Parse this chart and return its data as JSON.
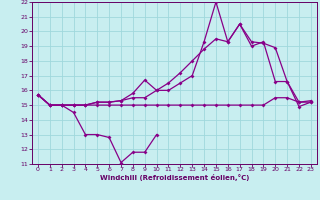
{
  "xlabel": "Windchill (Refroidissement éolien,°C)",
  "bg_color": "#c8eef0",
  "grid_color": "#a0d8dc",
  "line_color": "#880088",
  "xlim": [
    -0.5,
    23.5
  ],
  "ylim": [
    11,
    22
  ],
  "xticks": [
    0,
    1,
    2,
    3,
    4,
    5,
    6,
    7,
    8,
    9,
    10,
    11,
    12,
    13,
    14,
    15,
    16,
    17,
    18,
    19,
    20,
    21,
    22,
    23
  ],
  "yticks": [
    11,
    12,
    13,
    14,
    15,
    16,
    17,
    18,
    19,
    20,
    21,
    22
  ],
  "line1_x": [
    0,
    1,
    2,
    3,
    4,
    5,
    6,
    7,
    8,
    9,
    10
  ],
  "line1_y": [
    15.7,
    15.0,
    15.0,
    14.5,
    13.0,
    13.0,
    12.8,
    11.1,
    11.8,
    11.8,
    13.0
  ],
  "line2_x": [
    0,
    1,
    2,
    3,
    4,
    5,
    6,
    7,
    8,
    9,
    10,
    11,
    12,
    13,
    14,
    15,
    16,
    17,
    18,
    19,
    20,
    21,
    22,
    23
  ],
  "line2_y": [
    15.7,
    15.0,
    15.0,
    15.0,
    15.0,
    15.0,
    15.0,
    15.0,
    15.0,
    15.0,
    15.0,
    15.0,
    15.0,
    15.0,
    15.0,
    15.0,
    15.0,
    15.0,
    15.0,
    15.0,
    15.5,
    15.5,
    15.2,
    15.2
  ],
  "line3_x": [
    0,
    1,
    2,
    3,
    4,
    5,
    6,
    7,
    8,
    9,
    10,
    11,
    12,
    13,
    14,
    15,
    16,
    17,
    18,
    19,
    20,
    21,
    22,
    23
  ],
  "line3_y": [
    15.7,
    15.0,
    15.0,
    15.0,
    15.0,
    15.2,
    15.2,
    15.3,
    15.5,
    15.5,
    16.0,
    16.0,
    16.5,
    17.0,
    19.3,
    22.0,
    19.3,
    20.5,
    19.3,
    19.2,
    18.9,
    16.6,
    14.9,
    15.2
  ],
  "line4_x": [
    0,
    1,
    2,
    3,
    4,
    5,
    6,
    7,
    8,
    9,
    10,
    11,
    12,
    13,
    14,
    15,
    16,
    17,
    18,
    19,
    20,
    21,
    22,
    23
  ],
  "line4_y": [
    15.7,
    15.0,
    15.0,
    15.0,
    15.0,
    15.2,
    15.2,
    15.3,
    15.8,
    16.7,
    16.0,
    16.5,
    17.2,
    18.0,
    18.8,
    19.5,
    19.3,
    20.5,
    19.0,
    19.3,
    16.6,
    16.6,
    15.2,
    15.3
  ]
}
